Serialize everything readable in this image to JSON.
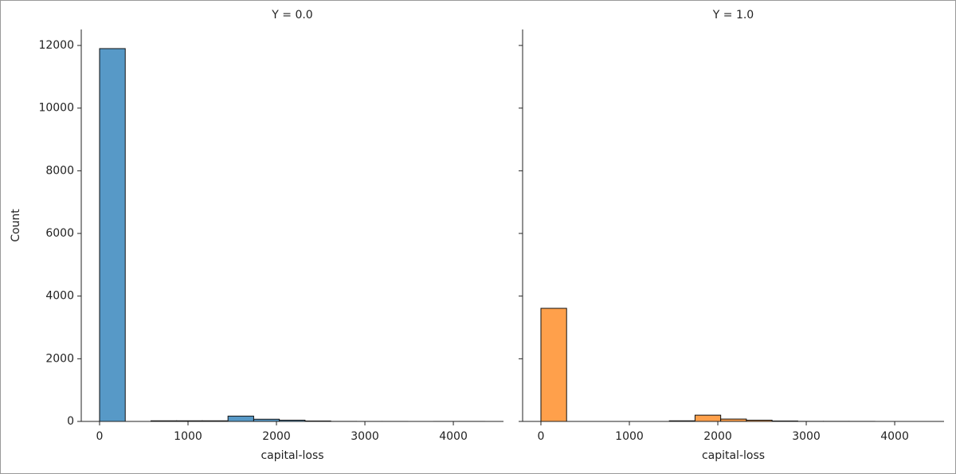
{
  "chart_data": [
    {
      "type": "histogram",
      "title": "Y = 0.0",
      "xlabel": "capital-loss",
      "ylabel": "Count",
      "color": "#5799c7",
      "bins": [
        0,
        290.4,
        580.8,
        871.2,
        1161.6,
        1452,
        1742.4,
        2032.8,
        2323.2,
        2613.6,
        2904,
        3194.4,
        3484.8,
        3775.2,
        4065.6,
        4356
      ],
      "values": [
        11900,
        0,
        20,
        20,
        20,
        170,
        70,
        40,
        15,
        2,
        1,
        1,
        0,
        1,
        1
      ],
      "xlim": [
        -207,
        4567
      ],
      "ylim": [
        0,
        12510
      ],
      "xticks": [
        0,
        1000,
        2000,
        3000,
        4000
      ],
      "yticks": [
        0,
        2000,
        4000,
        6000,
        8000,
        10000,
        12000
      ],
      "ytick_labels": true
    },
    {
      "type": "histogram",
      "title": "Y = 1.0",
      "xlabel": "capital-loss",
      "color": "#ffa04b",
      "bins": [
        0,
        290.4,
        580.8,
        871.2,
        1161.6,
        1452,
        1742.4,
        2032.8,
        2323.2,
        2613.6,
        2904,
        3194.4,
        3484.8,
        3775.2,
        4065.6,
        4356
      ],
      "values": [
        3610,
        0,
        0,
        0,
        0,
        20,
        200,
        75,
        40,
        15,
        3,
        3,
        2,
        0,
        0
      ],
      "xlim": [
        -207,
        4558
      ],
      "ylim": [
        0,
        12510
      ],
      "xticks": [
        0,
        1000,
        2000,
        3000,
        4000
      ],
      "yticks": [
        0,
        2000,
        4000,
        6000,
        8000,
        10000,
        12000
      ],
      "ytick_labels": false
    }
  ]
}
